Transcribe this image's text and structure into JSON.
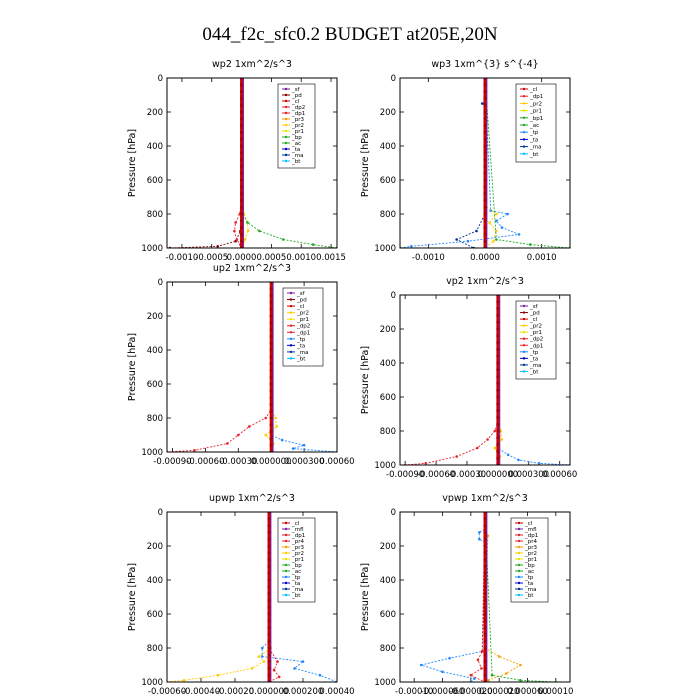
{
  "figure_title": "044_f2c_sfc0.2  BUDGET at205E,20N",
  "colors": {
    "sf": "#7a1fa2",
    "pd": "#8b0000",
    "cl": "#cc0000",
    "mfl": "#7a1fa2",
    "dp2": "#e8202a",
    "dp1": "#e8202a",
    "pr4": "#e8202a",
    "pr3": "#f5a000",
    "pr2": "#ffcc00",
    "pr1": "#e5e500",
    "bp": "#22aa22",
    "ac": "#22aa22",
    "tp": "#2288ff",
    "ta": "#0000cc",
    "ma": "#003399",
    "bt": "#00bfff",
    "bp1": "#22aa22"
  },
  "chart_data": [
    {
      "type": "line",
      "title": "wp2   1xm^2/s^3",
      "ylabel": "Pressure  [hPa]",
      "ylim": [
        1000,
        0
      ],
      "yticks": [
        "0",
        "200",
        "400",
        "600",
        "800",
        "1000"
      ],
      "xlim": [
        -0.00125,
        0.0016
      ],
      "xticks": [
        -0.001,
        -0.0005,
        0.0,
        0.0005,
        0.001,
        0.0015
      ],
      "xtick_labels": [
        "-0.0010",
        "-0.0005",
        "0.0000",
        "0.0005",
        "0.0010",
        "0.0015"
      ],
      "grid": false,
      "legend_position": "top-right",
      "legend": [
        "_sf",
        "_pd",
        "_cl",
        "_dp2",
        "_dp1",
        "_pr3",
        "_pr2",
        "_pr1",
        "_bp",
        "_ac",
        "_ta",
        "_ma",
        "_bt"
      ],
      "series": [
        {
          "name": "pd",
          "p": [
            0,
            600,
            800,
            900,
            960,
            990,
            1000
          ],
          "x": [
            0,
            0,
            0,
            -2e-05,
            -0.0001,
            -0.0004,
            -0.0012
          ]
        },
        {
          "name": "dp1",
          "p": [
            0,
            700,
            800,
            850,
            900,
            950,
            980,
            1000
          ],
          "x": [
            0,
            0,
            -3e-05,
            -0.0001,
            -0.00012,
            -8e-05,
            -2e-05,
            0
          ]
        },
        {
          "name": "pr2",
          "p": [
            0,
            700,
            800,
            850,
            900,
            950,
            990,
            1000
          ],
          "x": [
            0,
            0,
            4e-05,
            0.0001,
            0.00011,
            6e-05,
            2e-05,
            0
          ]
        },
        {
          "name": "bp",
          "p": [
            0,
            800,
            850,
            900,
            950,
            980,
            1000
          ],
          "x": [
            0,
            2e-05,
            0.0001,
            0.0003,
            0.0007,
            0.0012,
            0.0016
          ]
        },
        {
          "name": "sf",
          "p": [
            0,
            200,
            400,
            600,
            800,
            900,
            1000
          ],
          "x": [
            0,
            0,
            0,
            0,
            0,
            1e-05,
            0
          ]
        }
      ]
    },
    {
      "type": "line",
      "title": "wp3   1xm^{3} s^{-4}",
      "ylabel": "Pressure  [hPa]",
      "ylim": [
        1000,
        0
      ],
      "yticks": [
        "0",
        "200",
        "400",
        "600",
        "800",
        "1000"
      ],
      "xlim": [
        -0.0015,
        0.0015
      ],
      "xticks": [
        -0.001,
        0.0,
        0.001
      ],
      "xtick_labels": [
        "-0.0010",
        "0.0000",
        "0.0010"
      ],
      "grid": false,
      "legend_position": "top-right",
      "legend": [
        "_cl",
        "_dp1",
        "_pr2",
        "_pr1",
        "_bp1",
        "_ac",
        "_tp",
        "_ta",
        "_ma",
        "_bt"
      ],
      "series": [
        {
          "name": "tp",
          "p": [
            0,
            780,
            800,
            840,
            880,
            920,
            960,
            990,
            1000
          ],
          "x": [
            0,
            0.0001,
            0.0004,
            0.0002,
            0.0003,
            0.0006,
            -0.0003,
            -0.0013,
            -0.0015
          ]
        },
        {
          "name": "ma",
          "p": [
            0,
            140,
            150,
            160,
            800,
            900,
            950,
            1000
          ],
          "x": [
            0,
            0,
            -5e-05,
            0,
            0,
            -0.00015,
            -0.0005,
            -0.0002
          ]
        },
        {
          "name": "pr2",
          "p": [
            0,
            750,
            800,
            850,
            900,
            960,
            1000
          ],
          "x": [
            0,
            0,
            0.0002,
            8e-05,
            0.0002,
            0.00015,
            0
          ]
        },
        {
          "name": "cl",
          "p": [
            0,
            200,
            400,
            600,
            800,
            1000
          ],
          "x": [
            0,
            0,
            0,
            0,
            0,
            0
          ]
        },
        {
          "name": "bp1",
          "p": [
            0,
            950,
            980,
            1000
          ],
          "x": [
            0,
            0.0002,
            0.0008,
            0.0015
          ]
        }
      ]
    },
    {
      "type": "line",
      "title": "up2   1xm^2/s^3",
      "ylabel": "Pressure  [hPa]",
      "ylim": [
        1000,
        0
      ],
      "yticks": [
        "0",
        "200",
        "400",
        "600",
        "800",
        "1000"
      ],
      "xlim": [
        -0.00095,
        0.0006
      ],
      "xticks": [
        -0.0009,
        -0.0006,
        -0.0003,
        0.0,
        0.0003,
        0.0006
      ],
      "xtick_labels": [
        "-0.00090",
        "-0.00060",
        "-0.00030",
        "0.000000",
        "0.000300",
        "0.00060"
      ],
      "grid": false,
      "legend_position": "top-right",
      "legend": [
        "_sf",
        "_pd",
        "_cl",
        "_pr2",
        "_pr1",
        "_dp2",
        "_dp1",
        "_tp",
        "_ta",
        "_ma",
        "_bt"
      ],
      "series": [
        {
          "name": "dp1",
          "p": [
            0,
            750,
            800,
            850,
            900,
            950,
            990,
            1000
          ],
          "x": [
            0,
            0,
            -5e-05,
            -0.0002,
            -0.0003,
            -0.0004,
            -0.0007,
            -0.00095
          ]
        },
        {
          "name": "pr2",
          "p": [
            0,
            750,
            800,
            850,
            900,
            950,
            1000
          ],
          "x": [
            0,
            0,
            4e-05,
            5e-05,
            -5e-05,
            2e-05,
            0
          ]
        },
        {
          "name": "tp",
          "p": [
            0,
            900,
            930,
            960,
            980,
            1000
          ],
          "x": [
            0,
            0,
            0.0001,
            0.0003,
            0.0002,
            0.0006
          ]
        },
        {
          "name": "sf",
          "p": [
            0,
            200,
            400,
            600,
            800,
            1000
          ],
          "x": [
            0,
            0,
            0,
            0,
            0,
            0
          ]
        }
      ]
    },
    {
      "type": "line",
      "title": "vp2   1xm^2/s^3",
      "ylabel": "Pressure  [hPa]",
      "ylim": [
        1000,
        0
      ],
      "yticks": [
        "0",
        "200",
        "400",
        "600",
        "800",
        "1000"
      ],
      "xlim": [
        -0.00095,
        0.0007
      ],
      "xticks": [
        -0.0009,
        -0.0006,
        -0.0003,
        0.0,
        0.0003,
        0.0006
      ],
      "xtick_labels": [
        "-0.00090",
        "-0.00060",
        "-0.00030",
        "0.000000",
        "0.000300",
        "0.00060"
      ],
      "grid": false,
      "legend_position": "top-right",
      "legend": [
        "_sf",
        "_pd",
        "_cl",
        "_pr2",
        "_pr1",
        "_dp2",
        "_dp1",
        "_tp",
        "_ta",
        "_ma",
        "_bt"
      ],
      "series": [
        {
          "name": "dp1",
          "p": [
            0,
            750,
            800,
            850,
            900,
            950,
            990,
            1000
          ],
          "x": [
            0,
            0,
            -3e-05,
            -0.0001,
            -0.0002,
            -0.0004,
            -0.0007,
            -0.0009
          ]
        },
        {
          "name": "pr2",
          "p": [
            0,
            750,
            800,
            850,
            900,
            950,
            1000
          ],
          "x": [
            0,
            0,
            3e-05,
            4e-05,
            -3e-05,
            2e-05,
            0
          ]
        },
        {
          "name": "tp",
          "p": [
            0,
            900,
            940,
            970,
            990,
            1000
          ],
          "x": [
            0,
            0,
            0.0001,
            0.0002,
            0.0004,
            0.0007
          ]
        },
        {
          "name": "sf",
          "p": [
            0,
            200,
            400,
            600,
            800,
            1000
          ],
          "x": [
            0,
            0,
            0,
            0,
            0,
            0
          ]
        }
      ]
    },
    {
      "type": "line",
      "title": "upwp   1xm^2/s^3",
      "ylabel": "Pressure  [hPa]",
      "ylim": [
        1000,
        0
      ],
      "yticks": [
        "0",
        "200",
        "400",
        "600",
        "800",
        "1000"
      ],
      "xlim": [
        -0.0006,
        0.0004
      ],
      "xticks": [
        -0.0006,
        -0.0004,
        -0.0002,
        0.0,
        0.0002,
        0.0004
      ],
      "xtick_labels": [
        "-0.00060",
        "-0.00040",
        "-0.00020",
        "0.000000",
        "0.000200",
        "0.00040"
      ],
      "grid": false,
      "legend_position": "top-right",
      "legend": [
        "_cl",
        "_mfl",
        "_dp1",
        "_pr4",
        "_pr3",
        "_pr2",
        "_pr1",
        "_bp",
        "_ac",
        "_tp",
        "_ta",
        "_ma",
        "_bt"
      ],
      "series": [
        {
          "name": "tp",
          "p": [
            0,
            760,
            800,
            850,
            880,
            920,
            960,
            1000
          ],
          "x": [
            0,
            0,
            -4e-05,
            -4e-05,
            0.0002,
            0.00015,
            0.0003,
            0.0004
          ]
        },
        {
          "name": "pr2",
          "p": [
            0,
            800,
            850,
            880,
            920,
            960,
            990,
            1000
          ],
          "x": [
            0,
            1e-05,
            -6e-05,
            -3e-05,
            -0.0001,
            -0.0003,
            -0.0005,
            -0.0006
          ]
        },
        {
          "name": "dp1",
          "p": [
            0,
            800,
            880,
            930,
            970,
            1000
          ],
          "x": [
            0,
            0,
            5e-05,
            3e-05,
            6e-05,
            0
          ]
        },
        {
          "name": "mfl",
          "p": [
            0,
            200,
            400,
            600,
            800,
            1000
          ],
          "x": [
            0,
            0,
            0,
            0,
            0,
            0
          ]
        }
      ]
    },
    {
      "type": "line",
      "title": "vpwp   1xm^2/s^3",
      "ylabel": "Pressure  [hPa]",
      "ylim": [
        1000,
        0
      ],
      "yticks": [
        "0",
        "200",
        "400",
        "600",
        "800",
        "1000"
      ],
      "xlim": [
        -0.00012,
        0.00012
      ],
      "xticks": [
        -0.0001,
        -6e-05,
        -2e-05,
        2e-05,
        6e-05,
        0.0001
      ],
      "xtick_labels": [
        "-0.00010",
        "-0.000060",
        "-0.000020",
        "0.000020",
        "0.000060",
        "0.00010"
      ],
      "grid": false,
      "legend_position": "top-right",
      "legend": [
        "_cl",
        "_mfl",
        "_dp1",
        "_pr4",
        "_pr3",
        "_pr2",
        "_pr1",
        "_bp",
        "_ac",
        "_tp",
        "_ta",
        "_ma",
        "_bt"
      ],
      "series": [
        {
          "name": "tp",
          "p": [
            0,
            100,
            120,
            160,
            180,
            820,
            860,
            900,
            940,
            980,
            1000
          ],
          "x": [
            0,
            0,
            -8e-06,
            -8e-06,
            0,
            -4e-06,
            -5e-05,
            -9e-05,
            -6e-05,
            -1.5e-05,
            -2e-05
          ]
        },
        {
          "name": "pr3",
          "p": [
            0,
            100,
            140,
            800,
            850,
            900,
            950,
            990,
            1000
          ],
          "x": [
            0,
            0,
            4e-06,
            0,
            2e-05,
            5e-05,
            3e-05,
            5e-06,
            0
          ]
        },
        {
          "name": "pr4",
          "p": [
            0,
            820,
            870,
            920,
            960,
            1000
          ],
          "x": [
            0,
            -4e-06,
            -1e-05,
            -5e-06,
            -2e-05,
            0
          ]
        },
        {
          "name": "ac",
          "p": [
            0,
            960,
            990,
            1000
          ],
          "x": [
            0,
            1e-05,
            5e-05,
            0.0001
          ]
        },
        {
          "name": "mfl",
          "p": [
            0,
            200,
            400,
            600,
            800,
            1000
          ],
          "x": [
            0,
            0,
            0,
            0,
            0,
            0
          ]
        }
      ]
    }
  ]
}
